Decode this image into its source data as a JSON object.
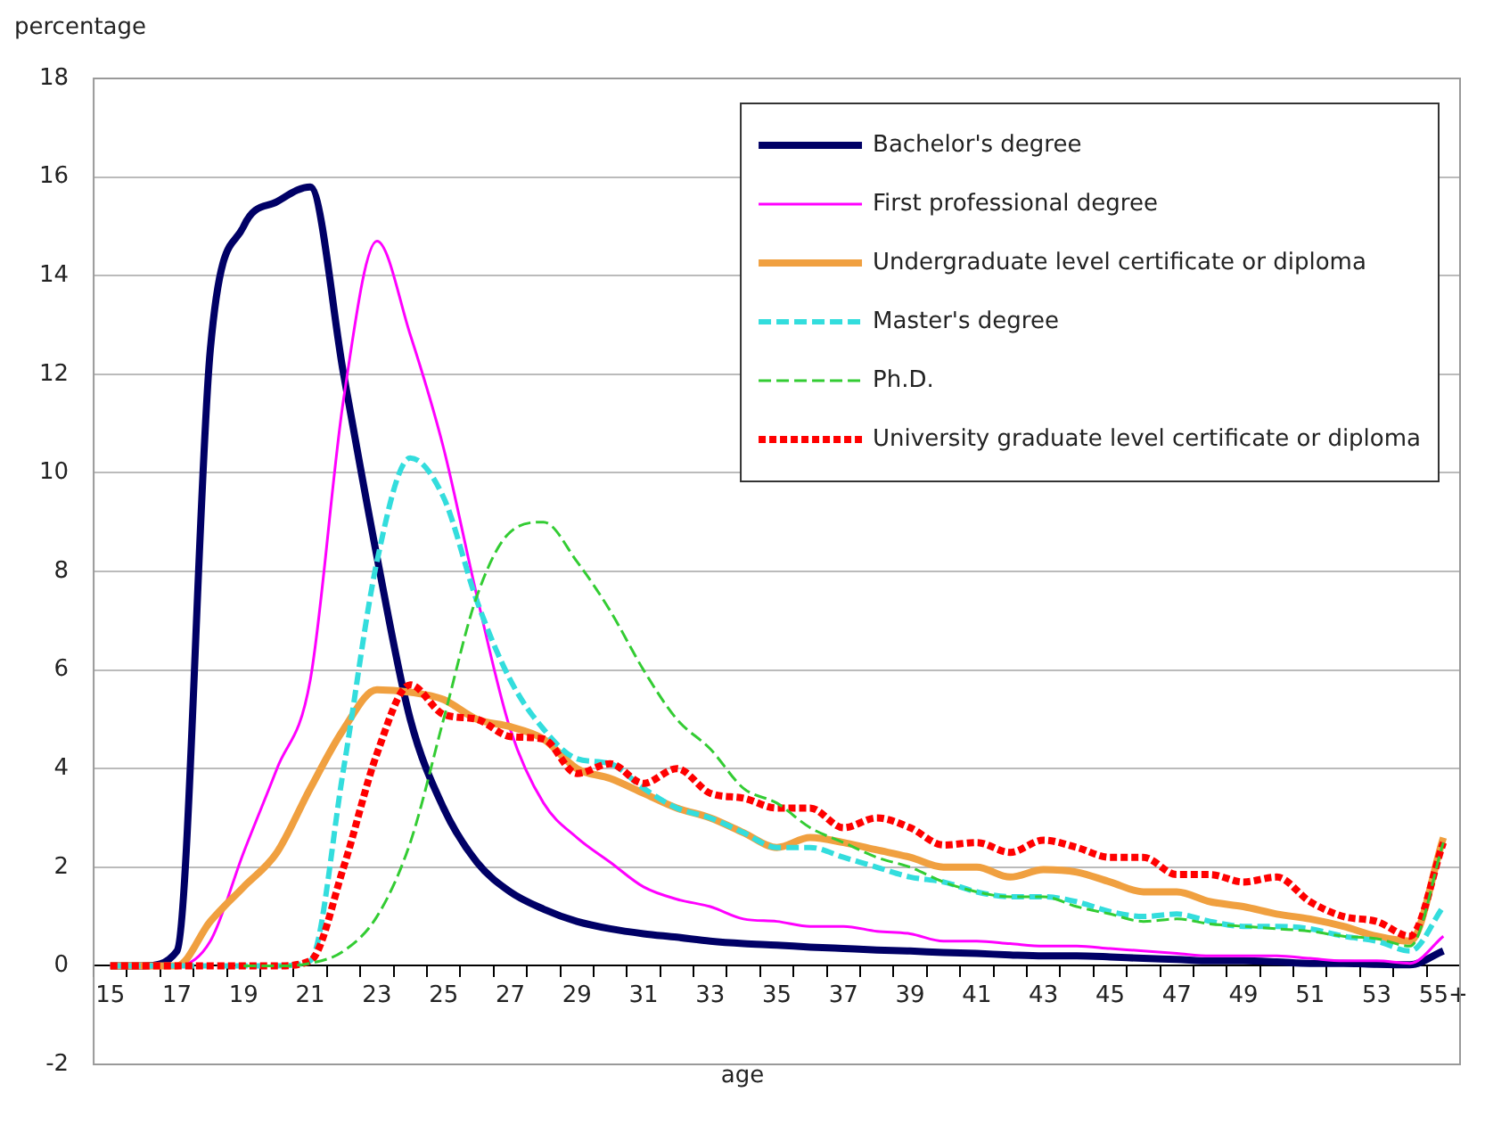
{
  "chart_data": {
    "type": "line",
    "xlabel": "age",
    "ylabel": "percentage",
    "categories": [
      "15",
      null,
      "17",
      null,
      "19",
      null,
      "21",
      null,
      "23",
      null,
      "25",
      null,
      "27",
      null,
      "29",
      null,
      "31",
      null,
      "33",
      null,
      "35",
      null,
      "37",
      null,
      "39",
      null,
      "41",
      null,
      "43",
      null,
      "45",
      null,
      "47",
      null,
      "49",
      null,
      "51",
      null,
      "53",
      null,
      "55+"
    ],
    "ylim": [
      -2,
      18
    ],
    "yticks": [
      -2,
      0,
      2,
      4,
      6,
      8,
      10,
      12,
      14,
      16,
      18
    ],
    "grid": "y",
    "legend": "top right",
    "marker": "none",
    "series": [
      {
        "name": "Bachelor's degree",
        "color": "#000066",
        "line_style": "solid",
        "values": [
          0,
          0,
          0.3,
          12.5,
          15.0,
          15.5,
          15.8,
          12.0,
          8.3,
          5.0,
          3.2,
          2.1,
          1.5,
          1.15,
          0.9,
          0.75,
          0.65,
          0.58,
          0.5,
          0.45,
          0.42,
          0.38,
          0.35,
          0.32,
          0.3,
          0.27,
          0.25,
          0.22,
          0.2,
          0.2,
          0.18,
          0.15,
          0.13,
          0.1,
          0.1,
          0.08,
          0.05,
          0.05,
          0.03,
          0.02,
          0.3
        ]
      },
      {
        "name": "First professional degree",
        "color": "#ff00ff",
        "line_style": "solid",
        "values": [
          0,
          0,
          0,
          0.5,
          2.3,
          4.0,
          5.8,
          11.5,
          14.7,
          12.8,
          10.5,
          7.5,
          4.8,
          3.3,
          2.6,
          2.1,
          1.6,
          1.35,
          1.2,
          0.95,
          0.9,
          0.8,
          0.8,
          0.7,
          0.65,
          0.5,
          0.5,
          0.45,
          0.4,
          0.4,
          0.35,
          0.3,
          0.25,
          0.2,
          0.2,
          0.2,
          0.15,
          0.1,
          0.1,
          0.05,
          0.6
        ]
      },
      {
        "name": "Undergraduate level certificate or diploma",
        "color": "#f0a040",
        "line_style": "solid",
        "values": [
          0,
          0,
          0,
          0.9,
          1.6,
          2.3,
          3.6,
          4.8,
          5.6,
          5.55,
          5.4,
          5.0,
          4.85,
          4.6,
          4.0,
          3.8,
          3.5,
          3.2,
          3.0,
          2.7,
          2.4,
          2.6,
          2.5,
          2.35,
          2.2,
          2.0,
          2.0,
          1.8,
          1.95,
          1.9,
          1.7,
          1.5,
          1.5,
          1.3,
          1.2,
          1.05,
          0.95,
          0.8,
          0.6,
          0.5,
          2.6
        ]
      },
      {
        "name": "Master's degree",
        "color": "#33dddd",
        "line_style": "dashed",
        "values": [
          0,
          0,
          0,
          0,
          0,
          0,
          0.1,
          4.0,
          8.2,
          10.3,
          9.5,
          7.4,
          5.8,
          4.8,
          4.2,
          4.1,
          3.6,
          3.2,
          3.0,
          2.7,
          2.4,
          2.4,
          2.2,
          2.0,
          1.8,
          1.7,
          1.5,
          1.4,
          1.4,
          1.3,
          1.1,
          1.0,
          1.05,
          0.9,
          0.8,
          0.8,
          0.75,
          0.6,
          0.5,
          0.3,
          1.2
        ]
      },
      {
        "name": "Ph.D.",
        "color": "#33cc33",
        "line_style": "dashed",
        "values": [
          null,
          null,
          null,
          null,
          0,
          0,
          0.05,
          0.3,
          1.0,
          2.5,
          5.0,
          7.5,
          8.8,
          9.0,
          8.2,
          7.2,
          6.0,
          5.0,
          4.4,
          3.6,
          3.3,
          2.8,
          2.5,
          2.2,
          2.0,
          1.7,
          1.5,
          1.4,
          1.4,
          1.2,
          1.05,
          0.9,
          0.95,
          0.85,
          0.8,
          0.75,
          0.7,
          0.6,
          0.55,
          0.4,
          2.5
        ]
      },
      {
        "name": "University graduate level certificate or diploma",
        "color": "#ff0000",
        "line_style": "dotted",
        "values": [
          0,
          0,
          0,
          0,
          0,
          0,
          0.1,
          2.0,
          4.3,
          5.7,
          5.1,
          5.0,
          4.65,
          4.6,
          3.9,
          4.1,
          3.7,
          4.0,
          3.5,
          3.4,
          3.2,
          3.2,
          2.8,
          3.0,
          2.8,
          2.45,
          2.5,
          2.3,
          2.55,
          2.4,
          2.2,
          2.2,
          1.85,
          1.85,
          1.7,
          1.8,
          1.3,
          1.0,
          0.9,
          0.6,
          2.5
        ]
      }
    ]
  }
}
